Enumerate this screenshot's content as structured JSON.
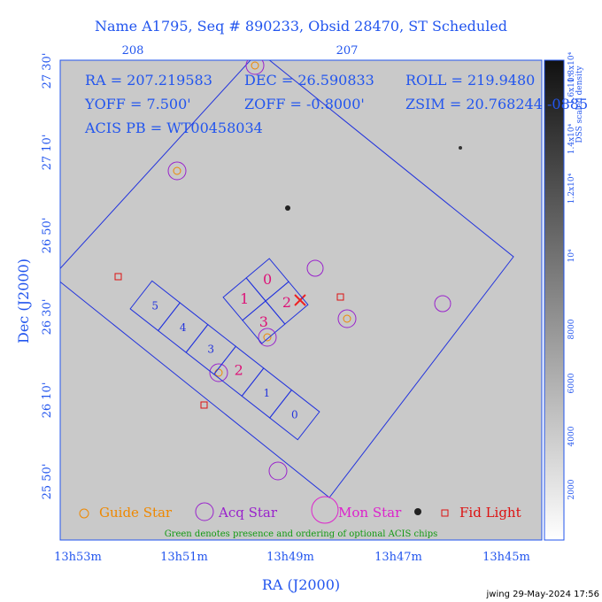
{
  "title": "Name A1795, Seq # 890233, Obsid 28470, ST Scheduled",
  "top_ticks": [
    "208",
    "207"
  ],
  "info": [
    "RA = 207.219583",
    "DEC = 26.590833",
    "ROLL = 219.9480",
    "YOFF =   7.500'",
    "ZOFF = -0.8000'",
    "ZSIM = 20.768244",
    "ACIS PB = WT00458034"
  ],
  "info_overflow": "-0885",
  "y_ticks": [
    "27 30'",
    "27 10'",
    "26 50'",
    "26 30'",
    "26 10'",
    "25 50'"
  ],
  "y_label": "Dec (J2000)",
  "x_ticks": [
    "13h53m",
    "13h51m",
    "13h49m",
    "13h47m",
    "13h45m"
  ],
  "x_label": "RA (J2000)",
  "colorbar_title": "DSS scaled density",
  "colorbar_ticks": [
    "2000",
    "4000",
    "6000",
    "8000",
    "10⁴",
    "1.2x10⁴",
    "1.4x10⁴",
    "1.6x10⁴",
    "1.8x10⁴"
  ],
  "i_chips": [
    "1",
    "0",
    "3",
    "2"
  ],
  "s_chips": [
    "5",
    "4",
    "3",
    "2",
    "1",
    "0"
  ],
  "legend": [
    "Guide Star",
    "Acq Star",
    "Mon Star",
    "Fid Light"
  ],
  "note": "Green denotes presence and ordering of optional ACIS chips",
  "footer": "jwing 29-May-2024 17:56"
}
